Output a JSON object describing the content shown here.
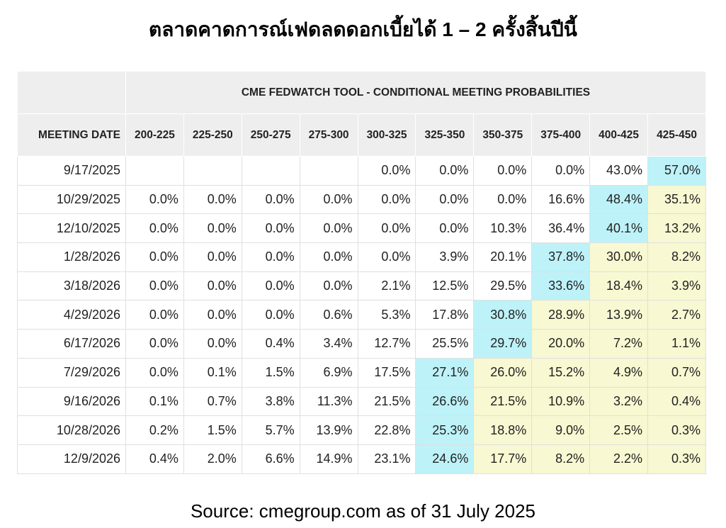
{
  "title": "ตลาดคาดการณ์เฟดลดดอกเบี้ยได้ 1 – 2 ครั้งสิ้นปีนี้",
  "table": {
    "caption": "CME FEDWATCH TOOL - CONDITIONAL MEETING PROBABILITIES",
    "columns": [
      "MEETING DATE",
      "200-225",
      "225-250",
      "250-275",
      "275-300",
      "300-325",
      "325-350",
      "350-375",
      "375-400",
      "400-425",
      "425-450"
    ],
    "rows": [
      [
        "9/17/2025",
        null,
        null,
        null,
        null,
        "0.0%",
        "0.0%",
        "0.0%",
        "0.0%",
        "43.0%",
        "57.0%"
      ],
      [
        "10/29/2025",
        "0.0%",
        "0.0%",
        "0.0%",
        "0.0%",
        "0.0%",
        "0.0%",
        "0.0%",
        "16.6%",
        "48.4%",
        "35.1%"
      ],
      [
        "12/10/2025",
        "0.0%",
        "0.0%",
        "0.0%",
        "0.0%",
        "0.0%",
        "0.0%",
        "10.3%",
        "36.4%",
        "40.1%",
        "13.2%"
      ],
      [
        "1/28/2026",
        "0.0%",
        "0.0%",
        "0.0%",
        "0.0%",
        "0.0%",
        "3.9%",
        "20.1%",
        "37.8%",
        "30.0%",
        "8.2%"
      ],
      [
        "3/18/2026",
        "0.0%",
        "0.0%",
        "0.0%",
        "0.0%",
        "2.1%",
        "12.5%",
        "29.5%",
        "33.6%",
        "18.4%",
        "3.9%"
      ],
      [
        "4/29/2026",
        "0.0%",
        "0.0%",
        "0.0%",
        "0.6%",
        "5.3%",
        "17.8%",
        "30.8%",
        "28.9%",
        "13.9%",
        "2.7%"
      ],
      [
        "6/17/2026",
        "0.0%",
        "0.0%",
        "0.4%",
        "3.4%",
        "12.7%",
        "25.5%",
        "29.7%",
        "20.0%",
        "7.2%",
        "1.1%"
      ],
      [
        "7/29/2026",
        "0.0%",
        "0.1%",
        "1.5%",
        "6.9%",
        "17.5%",
        "27.1%",
        "26.0%",
        "15.2%",
        "4.9%",
        "0.7%"
      ],
      [
        "9/16/2026",
        "0.1%",
        "0.7%",
        "3.8%",
        "11.3%",
        "21.5%",
        "26.6%",
        "21.5%",
        "10.9%",
        "3.2%",
        "0.4%"
      ],
      [
        "10/28/2026",
        "0.2%",
        "1.5%",
        "5.7%",
        "13.9%",
        "22.8%",
        "25.3%",
        "18.8%",
        "9.0%",
        "2.5%",
        "0.3%"
      ],
      [
        "12/9/2026",
        "0.4%",
        "2.0%",
        "6.6%",
        "14.9%",
        "23.1%",
        "24.6%",
        "17.7%",
        "8.2%",
        "2.2%",
        "0.3%"
      ]
    ]
  },
  "source": "Source: cmegroup.com as of 31 July 2025"
}
